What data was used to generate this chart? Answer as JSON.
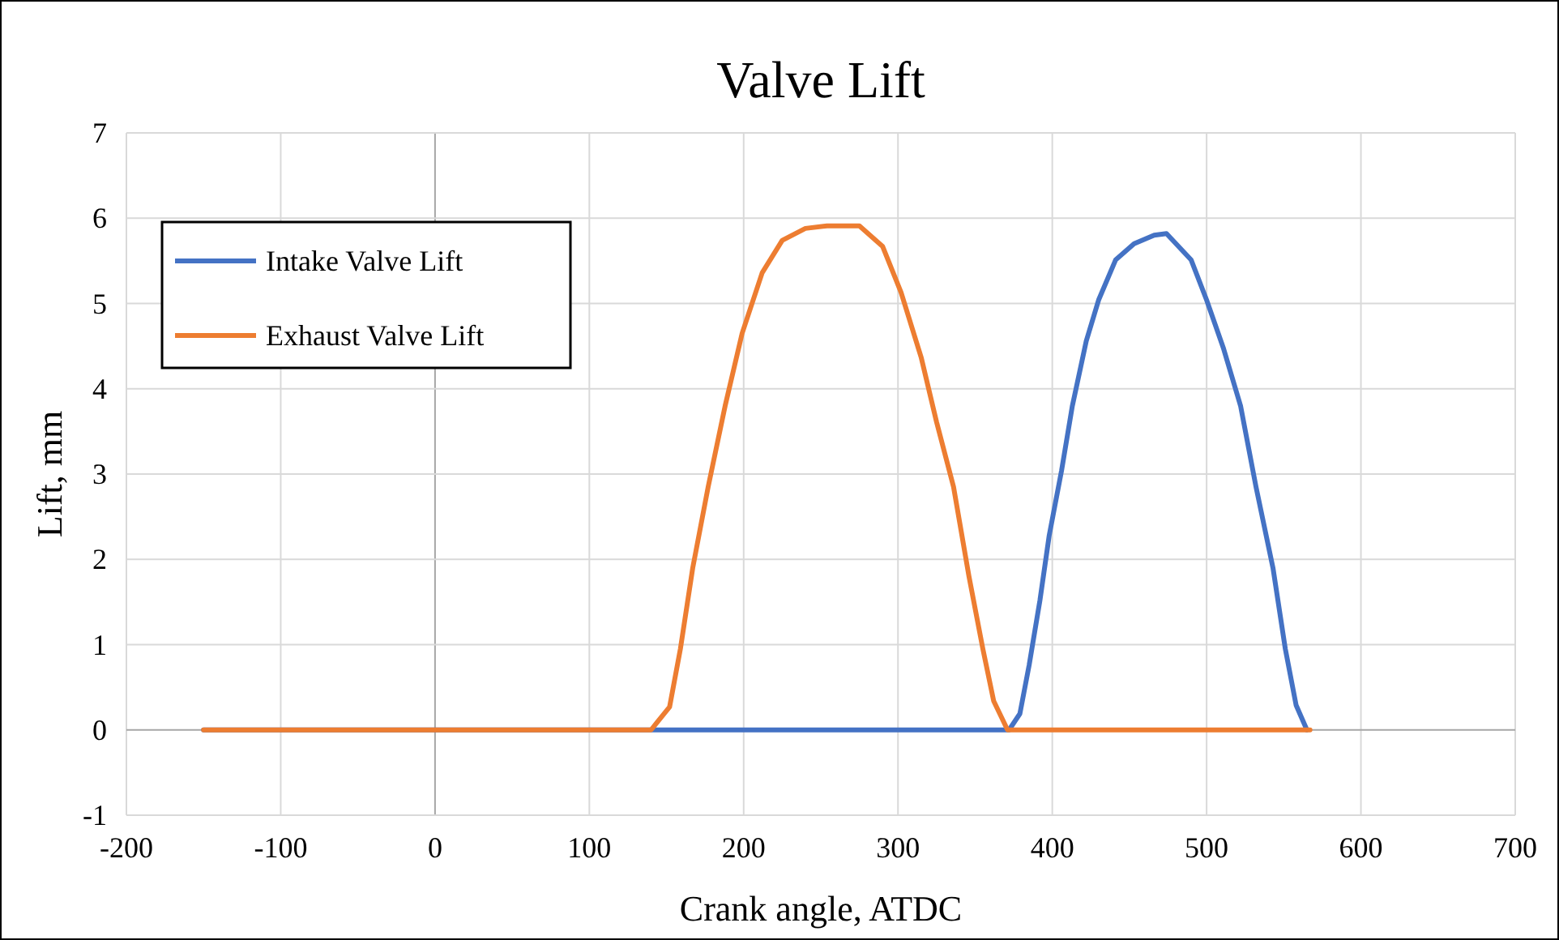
{
  "chart_data": {
    "type": "line",
    "title": "Valve Lift",
    "xlabel": "Crank angle, ATDC",
    "ylabel": "Lift, mm",
    "xlim": [
      -200,
      700
    ],
    "xticks": [
      -200,
      -100,
      0,
      100,
      200,
      300,
      400,
      500,
      600,
      700
    ],
    "ylim": [
      -1,
      7
    ],
    "yticks": [
      -1,
      0,
      1,
      2,
      3,
      4,
      5,
      6,
      7
    ],
    "grid": true,
    "legend": "top left",
    "line_style": "solid",
    "series": [
      {
        "name": "Intake Valve Lift",
        "color": "#4472c4",
        "x": [
          -150,
          0,
          200,
          372,
          379,
          385,
          392,
          398,
          406,
          413,
          422,
          430,
          441,
          453,
          466,
          474,
          490,
          500,
          511,
          522,
          532,
          543,
          551,
          558,
          565
        ],
        "values": [
          0,
          0,
          0,
          0,
          0.19,
          0.76,
          1.52,
          2.28,
          3.04,
          3.8,
          4.56,
          5.04,
          5.51,
          5.7,
          5.8,
          5.82,
          5.51,
          5.04,
          4.47,
          3.8,
          2.85,
          1.9,
          0.95,
          0.29,
          0
        ]
      },
      {
        "name": "Exhaust Valve Lift",
        "color": "#ed7d31",
        "x": [
          -150,
          0,
          140,
          143.5,
          152,
          159,
          167,
          177,
          188,
          199,
          212,
          225,
          240,
          254,
          275,
          290,
          302,
          315,
          325,
          336,
          346,
          355,
          362,
          371,
          450,
          567
        ],
        "values": [
          0,
          0,
          0,
          0.08,
          0.27,
          0.95,
          1.9,
          2.85,
          3.8,
          4.65,
          5.36,
          5.74,
          5.88,
          5.91,
          5.91,
          5.67,
          5.13,
          4.37,
          3.61,
          2.85,
          1.8,
          0.95,
          0.34,
          0,
          0,
          0
        ]
      }
    ]
  }
}
